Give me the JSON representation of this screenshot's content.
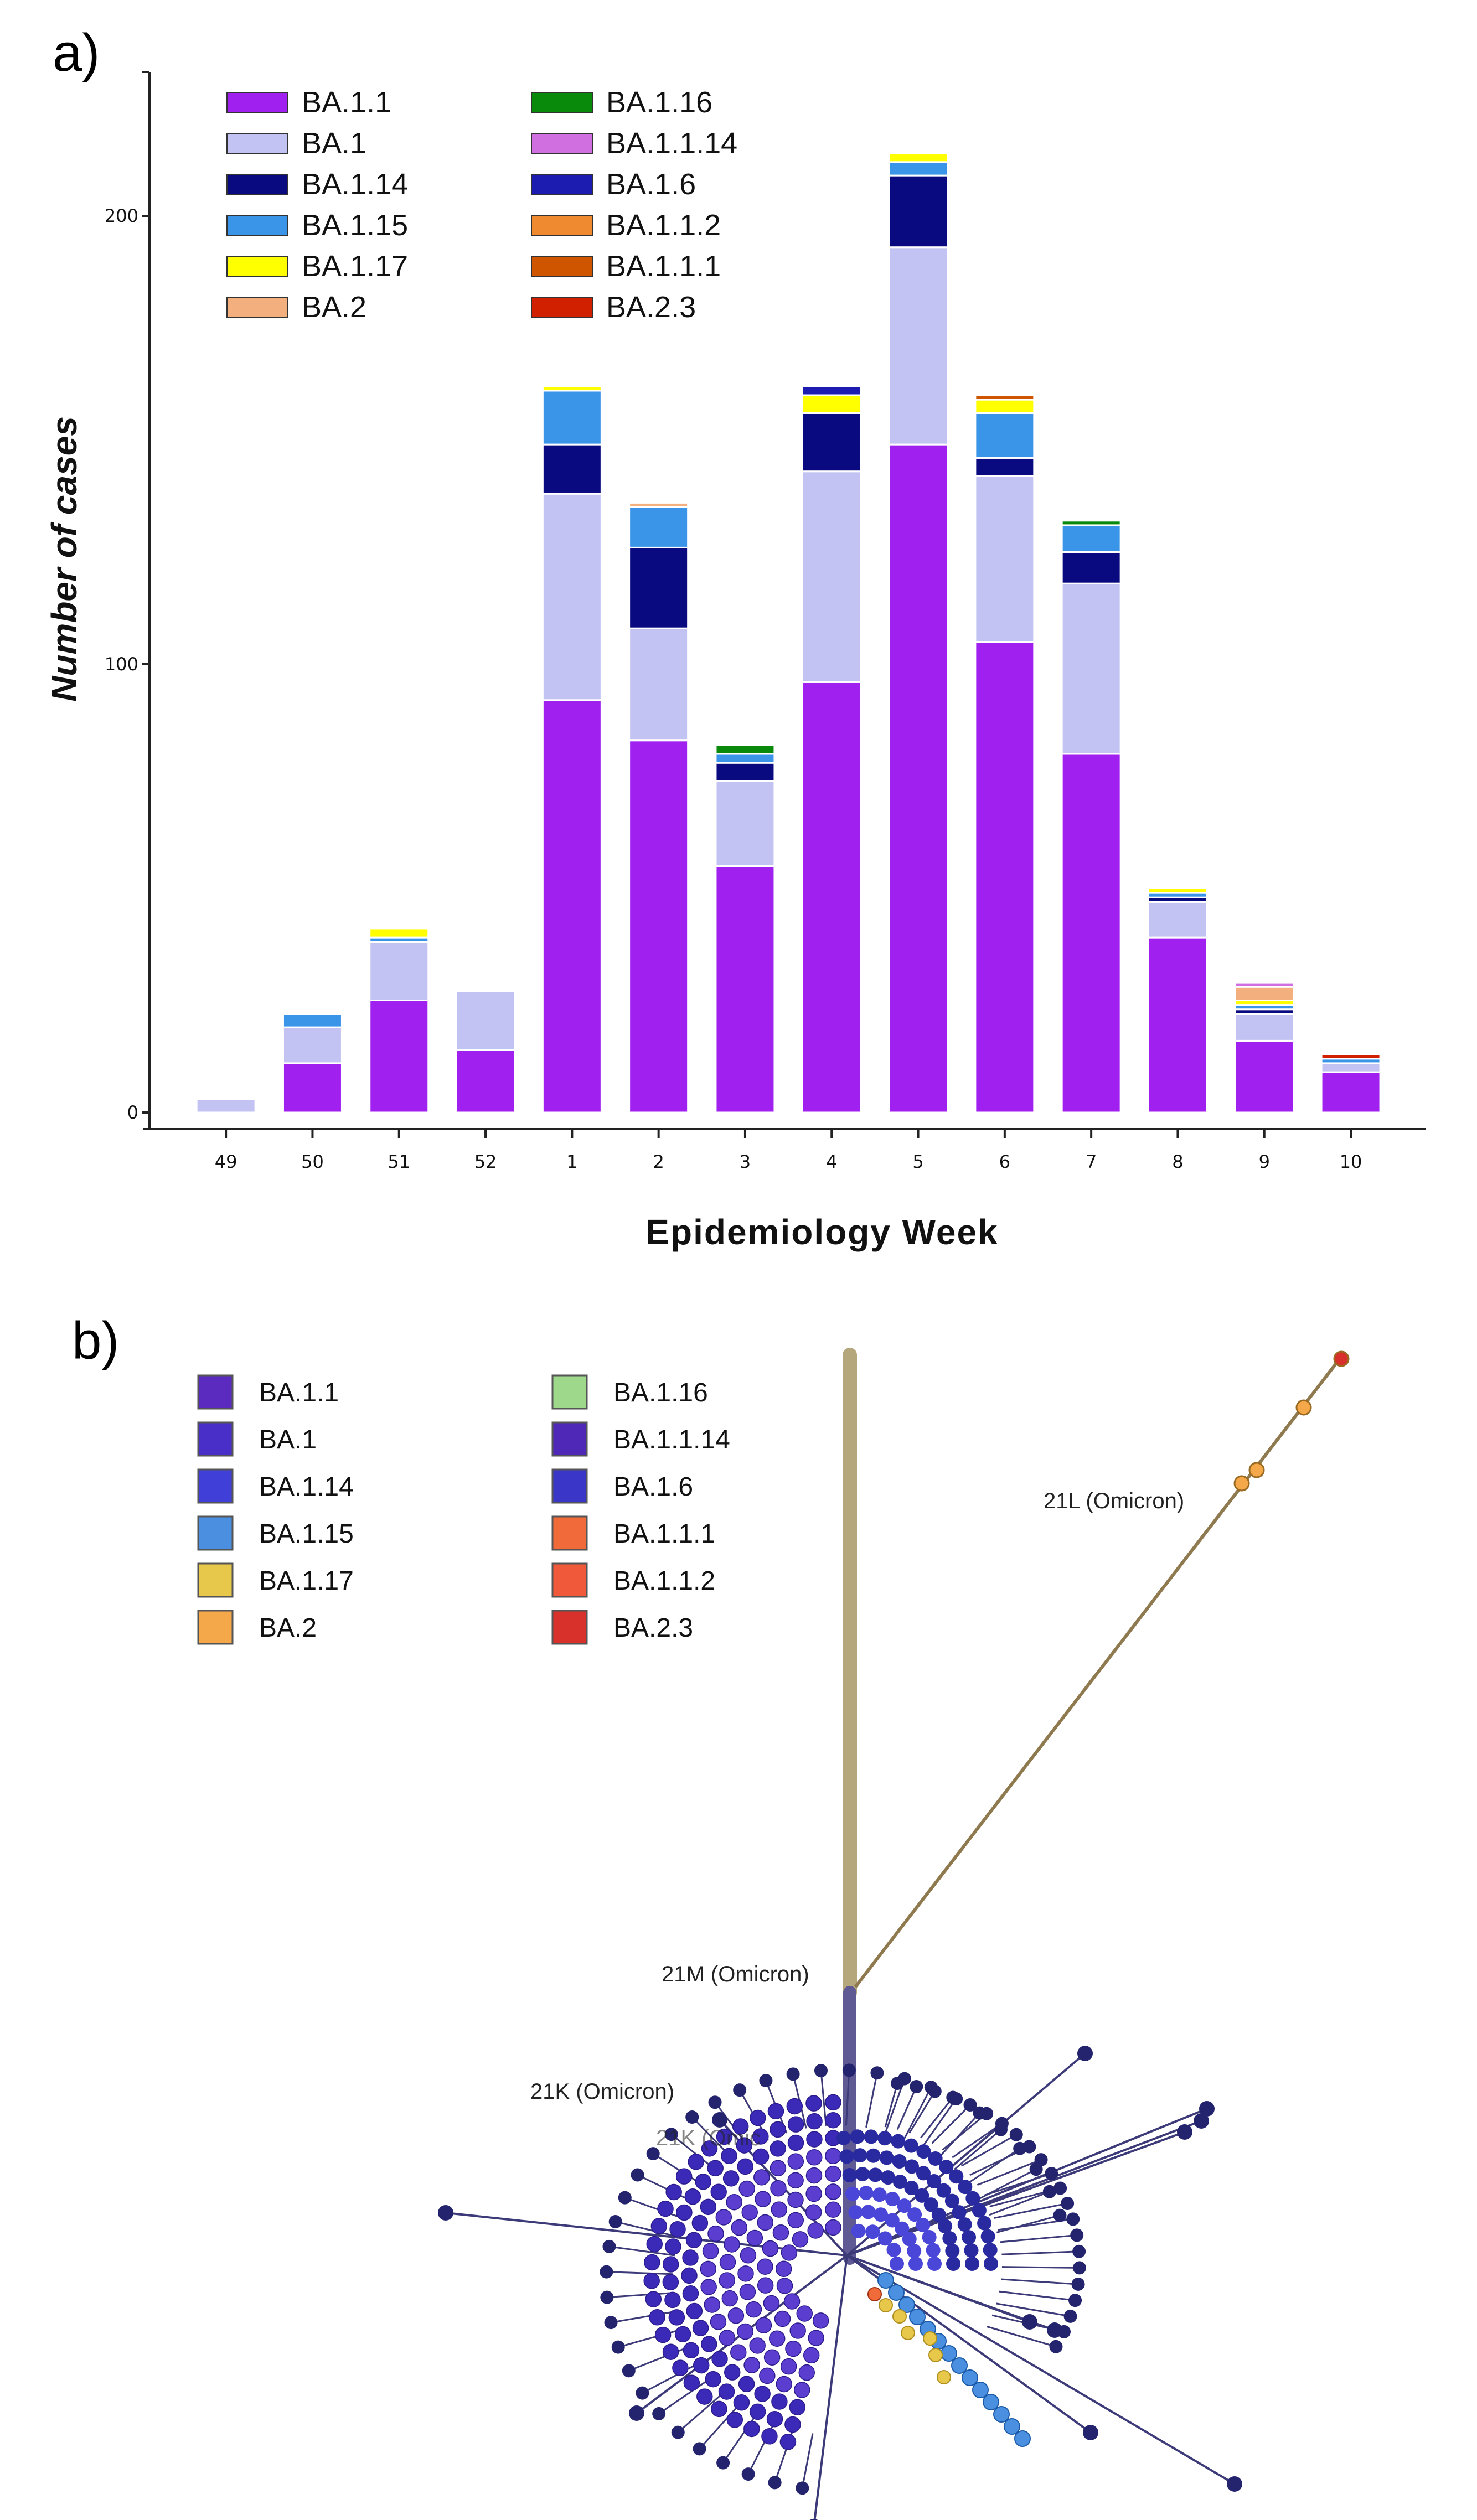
{
  "panel_a_label": "a)",
  "panel_b_label": "b)",
  "chart_data": [
    {
      "type": "bar",
      "stacked": true,
      "title": "",
      "xlabel": "Epidemiology Week",
      "ylabel": "Number of cases",
      "ylim": [
        0,
        230
      ],
      "yticks": [
        0,
        100,
        200
      ],
      "grid": false,
      "legend_position": "top-left",
      "categories": [
        "49",
        "50",
        "51",
        "52",
        "1",
        "2",
        "3",
        "4",
        "5",
        "6",
        "7",
        "8",
        "9",
        "10"
      ],
      "series": [
        {
          "name": "BA.1.1",
          "color": "#a020f0",
          "values": [
            0,
            11,
            25,
            14,
            92,
            83,
            55,
            96,
            149,
            105,
            80,
            39,
            16,
            9
          ]
        },
        {
          "name": "BA.1",
          "color": "#c3c3f3",
          "values": [
            3,
            8,
            13,
            13,
            46,
            25,
            19,
            47,
            44,
            37,
            38,
            8,
            6,
            2
          ]
        },
        {
          "name": "BA.1.14",
          "color": "#0a0a80",
          "values": [
            0,
            0,
            0,
            0,
            11,
            18,
            4,
            13,
            16,
            4,
            7,
            1,
            1,
            0
          ]
        },
        {
          "name": "BA.1.15",
          "color": "#3a95e8",
          "values": [
            0,
            3,
            1,
            0,
            12,
            9,
            2,
            0,
            3,
            10,
            6,
            1,
            1,
            1
          ]
        },
        {
          "name": "BA.1.17",
          "color": "#ffff00",
          "values": [
            0,
            0,
            2,
            0,
            1,
            0,
            0,
            4,
            2,
            3,
            0,
            1,
            1,
            0
          ]
        },
        {
          "name": "BA.2",
          "color": "#f3b07e",
          "values": [
            0,
            0,
            0,
            0,
            0,
            1,
            0,
            0,
            0,
            0,
            0,
            0,
            3,
            0
          ]
        },
        {
          "name": "BA.1.16",
          "color": "#0a8a0a",
          "values": [
            0,
            0,
            0,
            0,
            0,
            0,
            2,
            0,
            0,
            0,
            1,
            0,
            0,
            0
          ]
        },
        {
          "name": "BA.1.1.14",
          "color": "#d070e0",
          "values": [
            0,
            0,
            0,
            0,
            0,
            0,
            0,
            0,
            0,
            0,
            0,
            0,
            1,
            0
          ]
        },
        {
          "name": "BA.1.6",
          "color": "#1c1cb0",
          "values": [
            0,
            0,
            0,
            0,
            0,
            0,
            0,
            2,
            0,
            0,
            0,
            0,
            0,
            0
          ]
        },
        {
          "name": "BA.1.1.2",
          "color": "#f08a30",
          "values": [
            0,
            0,
            0,
            0,
            0,
            0,
            0,
            0,
            0,
            0,
            0,
            0,
            0,
            0
          ]
        },
        {
          "name": "BA.1.1.1",
          "color": "#d05500",
          "values": [
            0,
            0,
            0,
            0,
            0,
            0,
            0,
            0,
            0,
            1,
            0,
            0,
            0,
            0
          ]
        },
        {
          "name": "BA.2.3",
          "color": "#d02000",
          "values": [
            0,
            0,
            0,
            0,
            0,
            0,
            0,
            0,
            0,
            0,
            0,
            0,
            0,
            1
          ]
        }
      ],
      "legend_order": [
        "BA.1.1",
        "BA.1",
        "BA.1.14",
        "BA.1.15",
        "BA.1.17",
        "BA.2",
        "BA.1.16",
        "BA.1.1.14",
        "BA.1.6",
        "BA.1.1.2",
        "BA.1.1.1",
        "BA.2.3"
      ]
    },
    {
      "type": "phylogenetic-tree",
      "clade_labels": [
        "21L (Omicron)",
        "21M (Omicron)",
        "21K (Omicron)",
        "21K (Omic"
      ],
      "legend": [
        {
          "name": "BA.1.1",
          "color": "#5b2bc0"
        },
        {
          "name": "BA.1",
          "color": "#4a2ec8"
        },
        {
          "name": "BA.1.14",
          "color": "#4040d8"
        },
        {
          "name": "BA.1.15",
          "color": "#4a8fe0"
        },
        {
          "name": "BA.1.17",
          "color": "#e8c84a"
        },
        {
          "name": "BA.2",
          "color": "#f4a84a"
        },
        {
          "name": "BA.1.16",
          "color": "#9ed88a"
        },
        {
          "name": "BA.1.1.14",
          "color": "#5028b8"
        },
        {
          "name": "BA.1.6",
          "color": "#3a36c8"
        },
        {
          "name": "BA.1.1.1",
          "color": "#f06a3a"
        },
        {
          "name": "BA.1.1.2",
          "color": "#f05a3a"
        },
        {
          "name": "BA.2.3",
          "color": "#d8302a"
        }
      ]
    }
  ]
}
